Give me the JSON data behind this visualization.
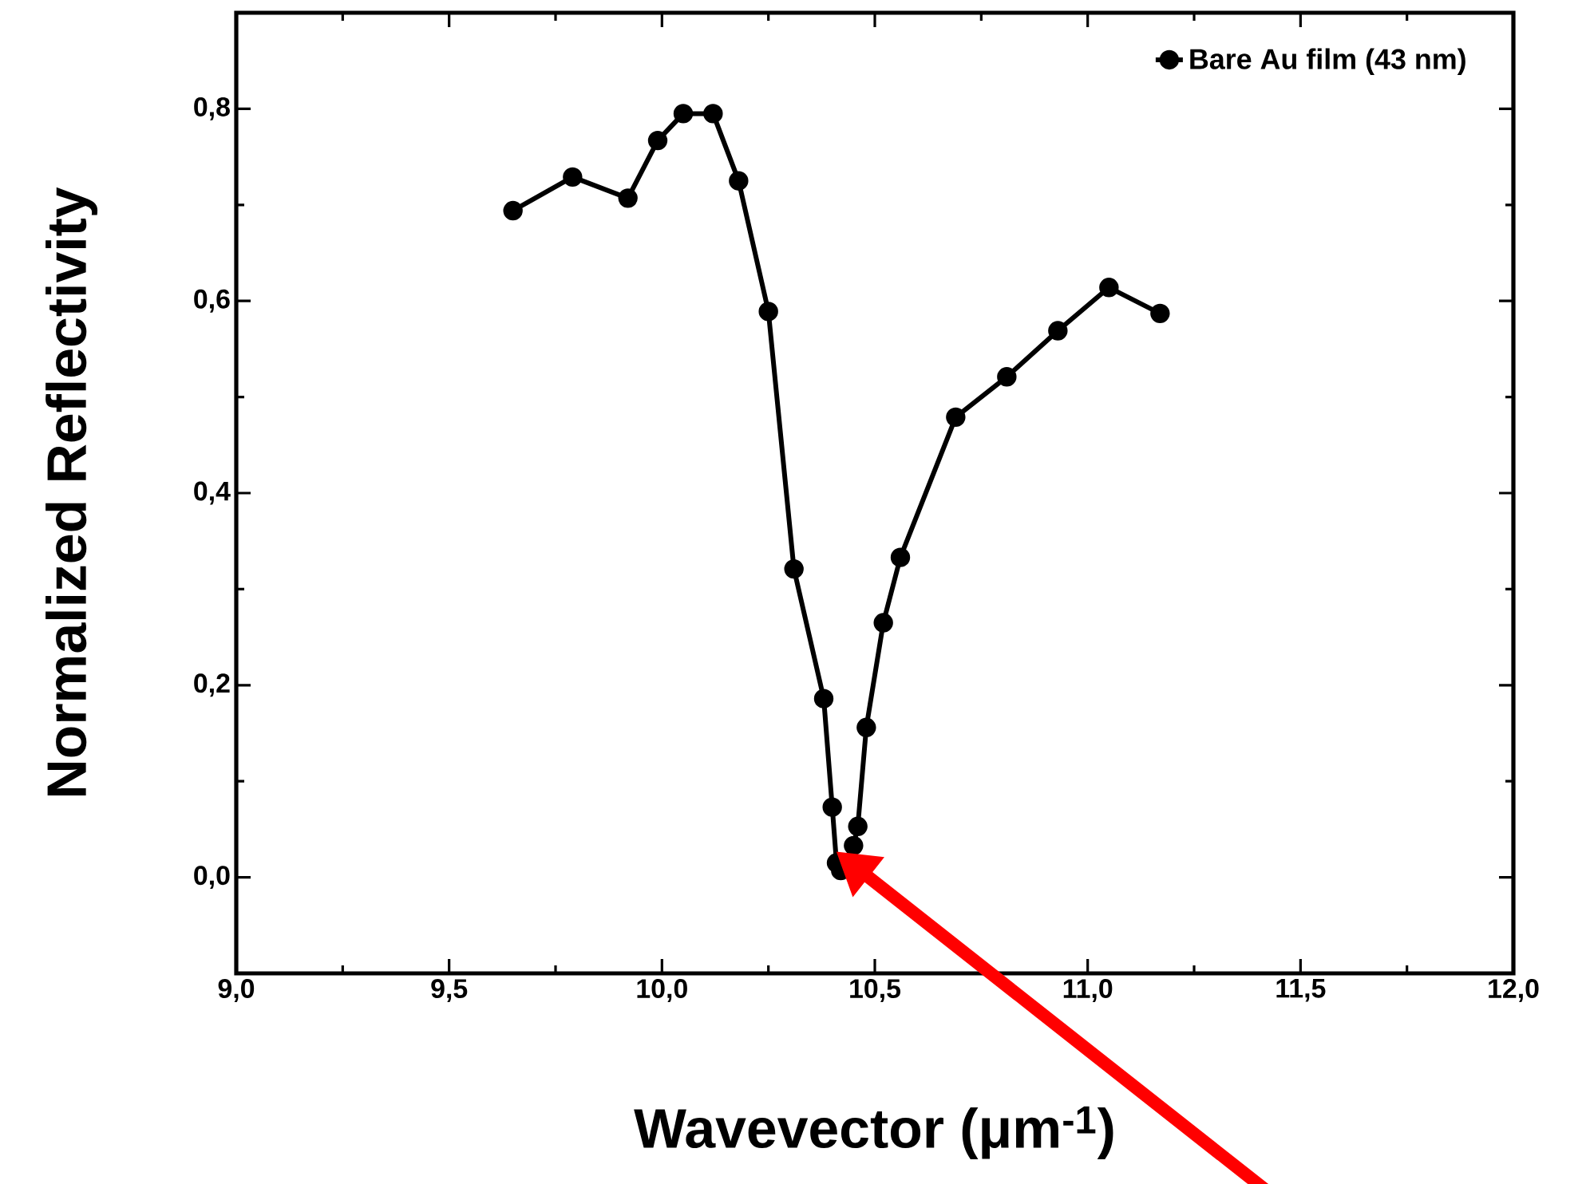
{
  "chart_data": {
    "type": "line",
    "xlabel": "Wavevector (μm$^{-1}$)",
    "ylabel": "Normalized Reflectivity",
    "x": [
      9.65,
      9.79,
      9.92,
      9.99,
      10.05,
      10.12,
      10.18,
      10.25,
      10.31,
      10.38,
      10.4,
      10.41,
      10.42,
      10.45,
      10.46,
      10.48,
      10.52,
      10.56,
      10.69,
      10.81,
      10.93,
      11.05,
      11.17
    ],
    "series": [
      {
        "name": "Bare Au film (43 nm)",
        "color": "#000000",
        "values": [
          0.694,
          0.729,
          0.707,
          0.767,
          0.795,
          0.795,
          0.725,
          0.589,
          0.321,
          0.186,
          0.073,
          0.015,
          0.007,
          0.033,
          0.053,
          0.156,
          0.265,
          0.333,
          0.479,
          0.521,
          0.569,
          0.614,
          0.587
        ]
      }
    ],
    "xlim": [
      9.0,
      12.0
    ],
    "ylim": [
      -0.1,
      0.9
    ],
    "xticks": [
      {
        "value": 9.0,
        "label": "9,0"
      },
      {
        "value": 9.5,
        "label": "9,5"
      },
      {
        "value": 10.0,
        "label": "10,0"
      },
      {
        "value": 10.5,
        "label": "10,5"
      },
      {
        "value": 11.0,
        "label": "11,0"
      },
      {
        "value": 11.5,
        "label": "11,5"
      },
      {
        "value": 12.0,
        "label": "12,0"
      }
    ],
    "yticks": [
      {
        "value": 0.0,
        "label": "0,0"
      },
      {
        "value": 0.2,
        "label": "0,2"
      },
      {
        "value": 0.4,
        "label": "0,4"
      },
      {
        "value": 0.6,
        "label": "0,6"
      },
      {
        "value": 0.8,
        "label": "0,8"
      }
    ],
    "legend": "top right",
    "marker": "circle",
    "line_style": "solid"
  }
}
